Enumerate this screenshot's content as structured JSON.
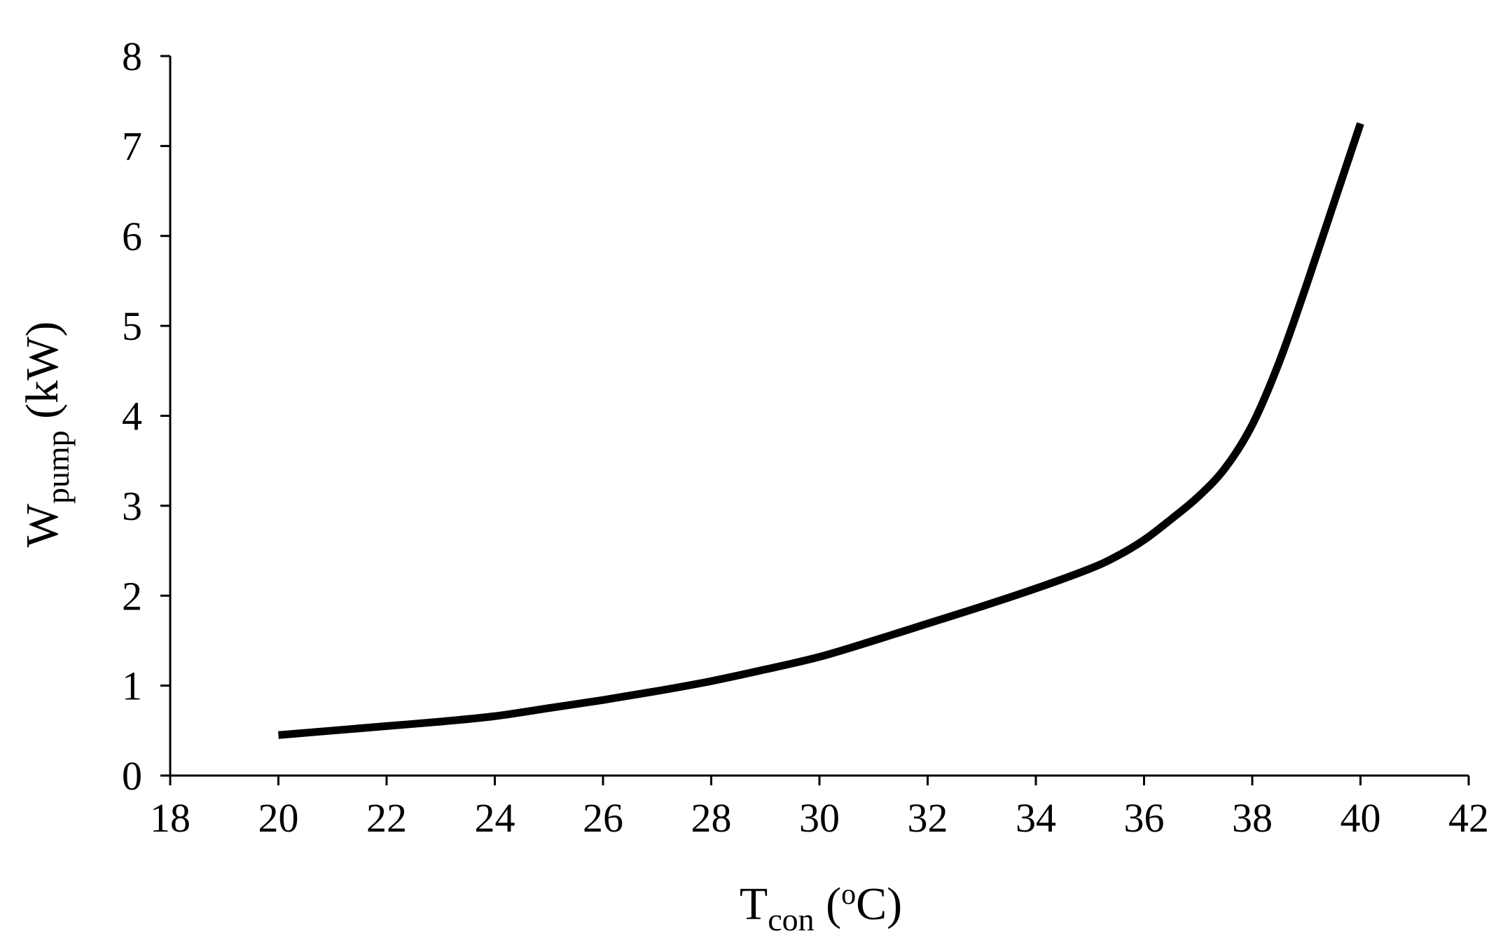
{
  "chart_data": {
    "type": "line",
    "title": "",
    "xlabel": {
      "main": "T",
      "subscript": "con",
      "unit_open": " (",
      "unit_sup": "o",
      "unit_close": "C)"
    },
    "ylabel": {
      "main": "W",
      "subscript": "pump",
      "unit": " (kW)"
    },
    "xlim": [
      18,
      42
    ],
    "ylim": [
      0,
      8
    ],
    "xticks": [
      18,
      20,
      22,
      24,
      26,
      28,
      30,
      32,
      34,
      36,
      38,
      40,
      42
    ],
    "yticks": [
      0,
      1,
      2,
      3,
      4,
      5,
      6,
      7,
      8
    ],
    "grid": false,
    "legend": "none",
    "series": [
      {
        "color": "#000000",
        "x": [
          20,
          21,
          22,
          23,
          24,
          25,
          26,
          27,
          28,
          29,
          30,
          31,
          32,
          33,
          34,
          35,
          35.5,
          36,
          36.5,
          37,
          37.5,
          38,
          38.5,
          39,
          39.5,
          40
        ],
        "y": [
          0.45,
          0.5,
          0.55,
          0.6,
          0.66,
          0.75,
          0.84,
          0.94,
          1.05,
          1.18,
          1.32,
          1.5,
          1.69,
          1.88,
          2.08,
          2.3,
          2.44,
          2.62,
          2.85,
          3.1,
          3.42,
          3.9,
          4.6,
          5.45,
          6.35,
          7.25
        ]
      }
    ]
  }
}
